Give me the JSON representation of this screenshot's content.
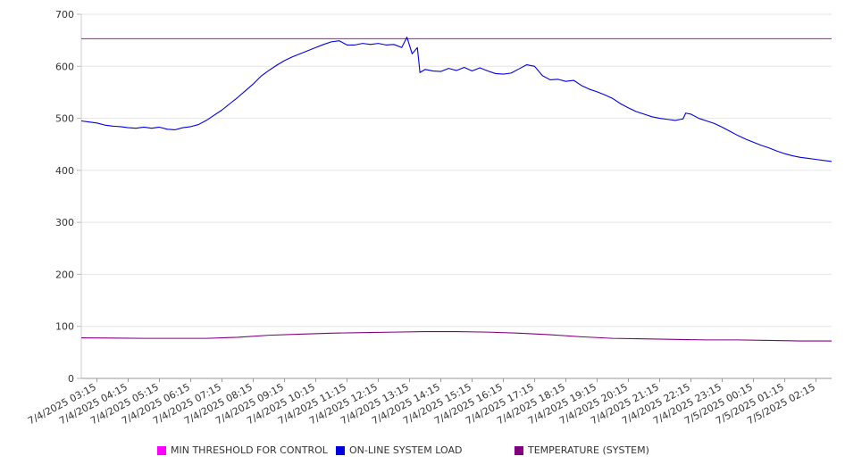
{
  "chart_data": {
    "type": "line",
    "title": "",
    "xlabel": "",
    "ylabel": "",
    "ylim": [
      0,
      700
    ],
    "yticks": [
      0,
      100,
      200,
      300,
      400,
      500,
      600,
      700
    ],
    "grid": true,
    "legend_position": "bottom",
    "x_tick_labels": [
      "7/4/2025 03:15",
      "7/4/2025 04:15",
      "7/4/2025 05:15",
      "7/4/2025 06:15",
      "7/4/2025 07:15",
      "7/4/2025 08:15",
      "7/4/2025 09:15",
      "7/4/2025 10:15",
      "7/4/2025 11:15",
      "7/4/2025 12:15",
      "7/4/2025 13:15",
      "7/4/2025 14:15",
      "7/4/2025 15:15",
      "7/4/2025 16:15",
      "7/4/2025 17:15",
      "7/4/2025 18:15",
      "7/4/2025 19:15",
      "7/4/2025 20:15",
      "7/4/2025 21:15",
      "7/4/2025 22:15",
      "7/4/2025 23:15",
      "7/5/2025 00:15",
      "7/5/2025 01:15",
      "7/5/2025 02:15"
    ],
    "x_range": [
      "7/4/2025 02:45",
      "7/5/2025 02:45"
    ],
    "series": [
      {
        "name": "MIN THRESHOLD FOR CONTROL",
        "color": "#ff00ff",
        "points": [
          [
            "7/4/2025 02:45",
            653
          ],
          [
            "7/5/2025 02:45",
            653
          ]
        ]
      },
      {
        "name": "ON-LINE SYSTEM LOAD",
        "color": "#0000dd",
        "points": [
          [
            "7/4/2025 02:45",
            495
          ],
          [
            "7/4/2025 03:00",
            493
          ],
          [
            "7/4/2025 03:15",
            491
          ],
          [
            "7/4/2025 03:30",
            487
          ],
          [
            "7/4/2025 03:45",
            485
          ],
          [
            "7/4/2025 04:00",
            484
          ],
          [
            "7/4/2025 04:15",
            482
          ],
          [
            "7/4/2025 04:30",
            481
          ],
          [
            "7/4/2025 04:45",
            483
          ],
          [
            "7/4/2025 05:00",
            481
          ],
          [
            "7/4/2025 05:15",
            483
          ],
          [
            "7/4/2025 05:30",
            479
          ],
          [
            "7/4/2025 05:45",
            478
          ],
          [
            "7/4/2025 06:00",
            482
          ],
          [
            "7/4/2025 06:15",
            484
          ],
          [
            "7/4/2025 06:30",
            488
          ],
          [
            "7/4/2025 06:45",
            496
          ],
          [
            "7/4/2025 07:00",
            506
          ],
          [
            "7/4/2025 07:15",
            516
          ],
          [
            "7/4/2025 07:30",
            528
          ],
          [
            "7/4/2025 07:45",
            540
          ],
          [
            "7/4/2025 08:00",
            553
          ],
          [
            "7/4/2025 08:15",
            566
          ],
          [
            "7/4/2025 08:30",
            581
          ],
          [
            "7/4/2025 08:45",
            592
          ],
          [
            "7/4/2025 09:00",
            602
          ],
          [
            "7/4/2025 09:15",
            611
          ],
          [
            "7/4/2025 09:30",
            618
          ],
          [
            "7/4/2025 09:45",
            624
          ],
          [
            "7/4/2025 10:00",
            630
          ],
          [
            "7/4/2025 10:15",
            636
          ],
          [
            "7/4/2025 10:30",
            642
          ],
          [
            "7/4/2025 10:45",
            647
          ],
          [
            "7/4/2025 11:00",
            649
          ],
          [
            "7/4/2025 11:15",
            641
          ],
          [
            "7/4/2025 11:30",
            641
          ],
          [
            "7/4/2025 11:45",
            644
          ],
          [
            "7/4/2025 12:00",
            642
          ],
          [
            "7/4/2025 12:15",
            644
          ],
          [
            "7/4/2025 12:30",
            641
          ],
          [
            "7/4/2025 12:45",
            642
          ],
          [
            "7/4/2025 13:00",
            636
          ],
          [
            "7/4/2025 13:10",
            656
          ],
          [
            "7/4/2025 13:20",
            624
          ],
          [
            "7/4/2025 13:30",
            636
          ],
          [
            "7/4/2025 13:35",
            588
          ],
          [
            "7/4/2025 13:45",
            594
          ],
          [
            "7/4/2025 14:00",
            591
          ],
          [
            "7/4/2025 14:15",
            590
          ],
          [
            "7/4/2025 14:30",
            596
          ],
          [
            "7/4/2025 14:45",
            592
          ],
          [
            "7/4/2025 15:00",
            598
          ],
          [
            "7/4/2025 15:15",
            591
          ],
          [
            "7/4/2025 15:30",
            597
          ],
          [
            "7/4/2025 15:45",
            591
          ],
          [
            "7/4/2025 16:00",
            586
          ],
          [
            "7/4/2025 16:15",
            585
          ],
          [
            "7/4/2025 16:30",
            587
          ],
          [
            "7/4/2025 16:45",
            595
          ],
          [
            "7/4/2025 17:00",
            603
          ],
          [
            "7/4/2025 17:15",
            600
          ],
          [
            "7/4/2025 17:30",
            582
          ],
          [
            "7/4/2025 17:45",
            574
          ],
          [
            "7/4/2025 18:00",
            575
          ],
          [
            "7/4/2025 18:15",
            571
          ],
          [
            "7/4/2025 18:30",
            573
          ],
          [
            "7/4/2025 18:45",
            563
          ],
          [
            "7/4/2025 19:00",
            556
          ],
          [
            "7/4/2025 19:15",
            551
          ],
          [
            "7/4/2025 19:30",
            545
          ],
          [
            "7/4/2025 19:45",
            538
          ],
          [
            "7/4/2025 20:00",
            528
          ],
          [
            "7/4/2025 20:15",
            520
          ],
          [
            "7/4/2025 20:30",
            513
          ],
          [
            "7/4/2025 20:45",
            508
          ],
          [
            "7/4/2025 21:00",
            503
          ],
          [
            "7/4/2025 21:15",
            500
          ],
          [
            "7/4/2025 21:30",
            498
          ],
          [
            "7/4/2025 21:45",
            496
          ],
          [
            "7/4/2025 22:00",
            499
          ],
          [
            "7/4/2025 22:05",
            510
          ],
          [
            "7/4/2025 22:15",
            508
          ],
          [
            "7/4/2025 22:30",
            500
          ],
          [
            "7/4/2025 22:45",
            495
          ],
          [
            "7/4/2025 23:00",
            490
          ],
          [
            "7/4/2025 23:15",
            483
          ],
          [
            "7/4/2025 23:30",
            475
          ],
          [
            "7/4/2025 23:45",
            467
          ],
          [
            "7/5/2025 00:00",
            460
          ],
          [
            "7/5/2025 00:15",
            454
          ],
          [
            "7/5/2025 00:30",
            448
          ],
          [
            "7/5/2025 00:45",
            443
          ],
          [
            "7/5/2025 01:00",
            437
          ],
          [
            "7/5/2025 01:15",
            432
          ],
          [
            "7/5/2025 01:30",
            428
          ],
          [
            "7/5/2025 01:45",
            425
          ],
          [
            "7/5/2025 02:00",
            423
          ],
          [
            "7/5/2025 02:15",
            421
          ],
          [
            "7/5/2025 02:30",
            419
          ],
          [
            "7/5/2025 02:45",
            417
          ]
        ]
      },
      {
        "name": "TEMPERATURE (SYSTEM)",
        "color": "#800080",
        "points": [
          [
            "7/4/2025 02:45",
            78
          ],
          [
            "7/4/2025 04:45",
            77
          ],
          [
            "7/4/2025 06:45",
            77
          ],
          [
            "7/4/2025 07:45",
            79
          ],
          [
            "7/4/2025 08:45",
            83
          ],
          [
            "7/4/2025 09:45",
            85
          ],
          [
            "7/4/2025 10:45",
            87
          ],
          [
            "7/4/2025 11:45",
            88
          ],
          [
            "7/4/2025 12:45",
            89
          ],
          [
            "7/4/2025 13:45",
            90
          ],
          [
            "7/4/2025 14:45",
            90
          ],
          [
            "7/4/2025 15:45",
            89
          ],
          [
            "7/4/2025 16:45",
            87
          ],
          [
            "7/4/2025 17:45",
            84
          ],
          [
            "7/4/2025 18:45",
            80
          ],
          [
            "7/4/2025 19:45",
            77
          ],
          [
            "7/4/2025 20:45",
            76
          ],
          [
            "7/4/2025 21:45",
            75
          ],
          [
            "7/4/2025 22:45",
            74
          ],
          [
            "7/4/2025 23:45",
            74
          ],
          [
            "7/5/2025 00:45",
            73
          ],
          [
            "7/5/2025 01:45",
            72
          ],
          [
            "7/5/2025 02:45",
            72
          ]
        ]
      }
    ]
  }
}
